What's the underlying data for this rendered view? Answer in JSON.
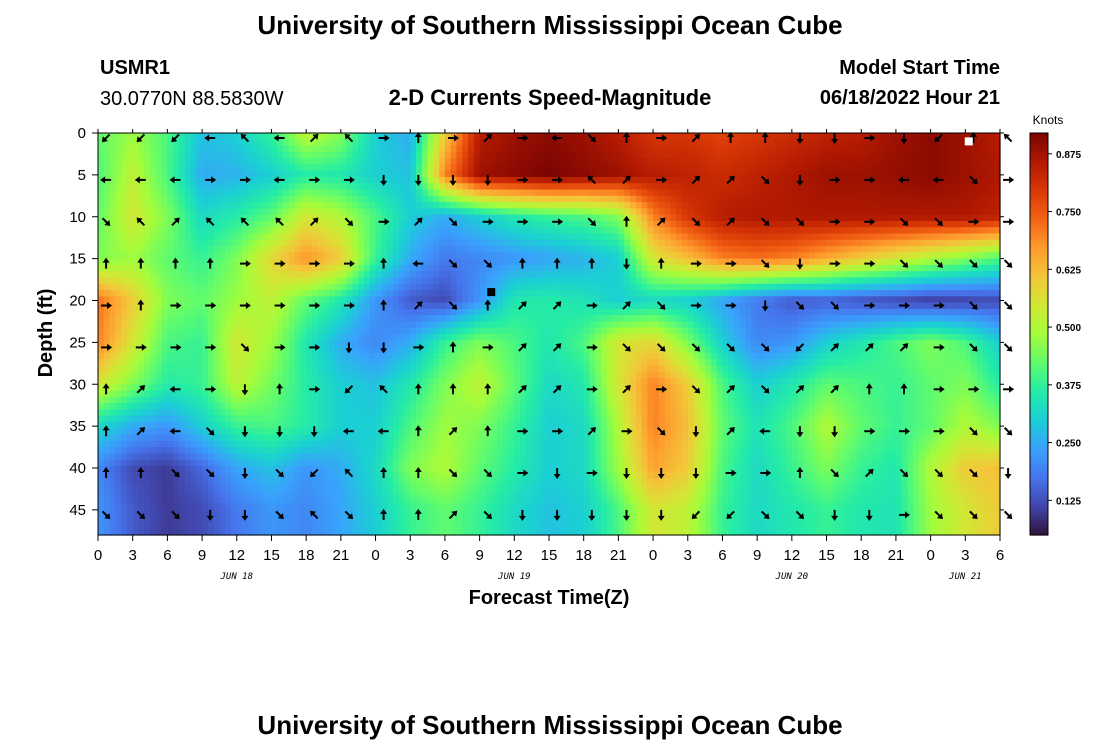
{
  "header": {
    "title": "University of Southern Mississippi Ocean Cube",
    "station_id": "USMR1",
    "station_coords": "30.0770N  88.5830W",
    "subtitle": "2-D Currents Speed-Magnitude",
    "model_start_label": "Model Start Time",
    "model_start_value": "06/18/2022 Hour 21"
  },
  "footer": {
    "title": "University of Southern Mississippi Ocean Cube"
  },
  "chart_data": {
    "type": "heatmap",
    "xlabel": "Forecast Time(Z)",
    "ylabel": "Depth (ft)",
    "x_tick_labels": [
      "0",
      "3",
      "6",
      "9",
      "12",
      "15",
      "18",
      "21",
      "0",
      "3",
      "6",
      "9",
      "12",
      "15",
      "18",
      "21",
      "0",
      "3",
      "6",
      "9",
      "12",
      "15",
      "18",
      "21",
      "0",
      "3",
      "6"
    ],
    "x_range_hours": [
      0,
      78
    ],
    "date_labels": [
      {
        "text": "JUN 18",
        "hour": 12
      },
      {
        "text": "JUN 19",
        "hour": 36
      },
      {
        "text": "JUN 20",
        "hour": 60
      },
      {
        "text": "JUN 21",
        "hour": 75
      }
    ],
    "y_ticks": [
      0,
      5,
      10,
      15,
      20,
      25,
      30,
      35,
      40,
      45
    ],
    "y_range_ft": [
      0,
      48
    ],
    "colorbar": {
      "title": "Knots",
      "ticks": [
        0.125,
        0.25,
        0.375,
        0.5,
        0.625,
        0.75,
        0.875
      ],
      "tick_labels": [
        "0.125",
        "0.250",
        "0.375",
        "0.500",
        "0.625",
        "0.750",
        "0.875"
      ],
      "range": [
        0.05,
        0.92
      ],
      "colormap": [
        "#30123b",
        "#4145ab",
        "#4675ed",
        "#39a2fc",
        "#1bcfd4",
        "#24eca6",
        "#61fc6c",
        "#a4fc3b",
        "#d1e834",
        "#f3c63a",
        "#fe9b2d",
        "#f36315",
        "#d93806",
        "#b11901",
        "#7a0403"
      ]
    },
    "speed_grid": {
      "row_depths_ft": [
        0,
        5,
        10,
        15,
        20,
        25,
        30,
        35,
        40,
        45
      ],
      "col_hours": [
        0,
        3,
        6,
        9,
        12,
        15,
        18,
        21,
        24,
        27,
        30,
        33,
        36,
        39,
        42,
        45,
        48,
        51,
        54,
        57,
        60,
        63,
        66,
        69,
        72,
        75,
        78
      ],
      "values": [
        [
          0.42,
          0.48,
          0.4,
          0.28,
          0.3,
          0.38,
          0.52,
          0.46,
          0.3,
          0.25,
          0.6,
          0.85,
          0.88,
          0.9,
          0.88,
          0.85,
          0.8,
          0.8,
          0.78,
          0.8,
          0.82,
          0.84,
          0.85,
          0.88,
          0.9,
          0.88,
          0.85
        ],
        [
          0.4,
          0.52,
          0.4,
          0.25,
          0.26,
          0.3,
          0.36,
          0.35,
          0.3,
          0.28,
          0.7,
          0.88,
          0.9,
          0.92,
          0.9,
          0.88,
          0.85,
          0.84,
          0.82,
          0.84,
          0.86,
          0.88,
          0.88,
          0.89,
          0.9,
          0.88,
          0.86
        ],
        [
          0.42,
          0.55,
          0.45,
          0.32,
          0.36,
          0.42,
          0.55,
          0.5,
          0.4,
          0.3,
          0.25,
          0.3,
          0.35,
          0.38,
          0.4,
          0.45,
          0.7,
          0.8,
          0.85,
          0.86,
          0.86,
          0.86,
          0.86,
          0.86,
          0.86,
          0.86,
          0.84
        ],
        [
          0.45,
          0.48,
          0.42,
          0.38,
          0.45,
          0.58,
          0.68,
          0.6,
          0.38,
          0.25,
          0.18,
          0.2,
          0.22,
          0.24,
          0.26,
          0.3,
          0.55,
          0.62,
          0.7,
          0.72,
          0.7,
          0.65,
          0.6,
          0.55,
          0.5,
          0.45,
          0.4
        ],
        [
          0.72,
          0.6,
          0.45,
          0.42,
          0.48,
          0.52,
          0.42,
          0.35,
          0.22,
          0.14,
          0.12,
          0.22,
          0.35,
          0.36,
          0.34,
          0.3,
          0.32,
          0.3,
          0.24,
          0.18,
          0.14,
          0.15,
          0.13,
          0.12,
          0.1,
          0.11,
          0.12
        ],
        [
          0.7,
          0.55,
          0.4,
          0.38,
          0.55,
          0.48,
          0.35,
          0.25,
          0.2,
          0.25,
          0.38,
          0.45,
          0.4,
          0.35,
          0.4,
          0.55,
          0.58,
          0.45,
          0.3,
          0.2,
          0.22,
          0.3,
          0.35,
          0.4,
          0.45,
          0.4,
          0.3
        ],
        [
          0.55,
          0.45,
          0.36,
          0.38,
          0.52,
          0.44,
          0.36,
          0.3,
          0.28,
          0.35,
          0.45,
          0.52,
          0.42,
          0.32,
          0.35,
          0.55,
          0.7,
          0.6,
          0.4,
          0.3,
          0.35,
          0.42,
          0.4,
          0.38,
          0.42,
          0.45,
          0.36
        ],
        [
          0.32,
          0.25,
          0.22,
          0.3,
          0.38,
          0.4,
          0.36,
          0.3,
          0.3,
          0.4,
          0.48,
          0.45,
          0.38,
          0.3,
          0.32,
          0.5,
          0.7,
          0.62,
          0.42,
          0.34,
          0.4,
          0.5,
          0.42,
          0.38,
          0.42,
          0.5,
          0.45
        ],
        [
          0.2,
          0.12,
          0.1,
          0.16,
          0.24,
          0.28,
          0.22,
          0.25,
          0.32,
          0.45,
          0.5,
          0.42,
          0.36,
          0.3,
          0.32,
          0.48,
          0.66,
          0.6,
          0.4,
          0.32,
          0.38,
          0.45,
          0.38,
          0.35,
          0.5,
          0.6,
          0.62
        ],
        [
          0.22,
          0.14,
          0.1,
          0.12,
          0.18,
          0.22,
          0.2,
          0.24,
          0.3,
          0.38,
          0.42,
          0.38,
          0.32,
          0.28,
          0.3,
          0.4,
          0.55,
          0.52,
          0.38,
          0.32,
          0.35,
          0.38,
          0.35,
          0.34,
          0.48,
          0.55,
          0.6
        ]
      ]
    },
    "vector_directions_deg": [
      [
        225,
        225,
        225,
        270,
        315,
        270,
        45,
        315,
        90,
        0,
        90,
        45,
        90,
        270,
        135,
        0,
        90,
        45,
        0,
        0,
        180,
        180,
        90,
        180,
        225,
        0,
        315
      ],
      [
        270,
        270,
        270,
        90,
        90,
        270,
        90,
        90,
        180,
        180,
        180,
        180,
        90,
        90,
        315,
        45,
        90,
        45,
        45,
        135,
        180,
        90,
        90,
        270,
        270,
        135,
        90
      ],
      [
        135,
        315,
        45,
        315,
        315,
        315,
        45,
        135,
        90,
        45,
        135,
        90,
        90,
        90,
        135,
        0,
        45,
        135,
        45,
        135,
        135,
        90,
        90,
        135,
        135,
        90,
        90
      ],
      [
        0,
        0,
        0,
        0,
        90,
        90,
        90,
        90,
        0,
        270,
        135,
        135,
        0,
        0,
        0,
        180,
        0,
        90,
        90,
        135,
        180,
        90,
        90,
        135,
        135,
        135,
        135
      ],
      [
        90,
        0,
        90,
        90,
        90,
        90,
        90,
        90,
        0,
        45,
        135,
        0,
        45,
        45,
        90,
        45,
        135,
        90,
        90,
        180,
        135,
        135,
        90,
        90,
        90,
        135,
        135
      ],
      [
        90,
        90,
        90,
        90,
        135,
        90,
        90,
        180,
        180,
        90,
        0,
        90,
        45,
        45,
        90,
        135,
        135,
        135,
        135,
        135,
        225,
        45,
        45,
        45,
        90,
        135,
        135
      ],
      [
        0,
        45,
        270,
        90,
        180,
        0,
        90,
        225,
        315,
        0,
        0,
        0,
        45,
        45,
        90,
        45,
        90,
        135,
        45,
        135,
        45,
        45,
        0,
        0,
        90,
        90,
        90
      ],
      [
        0,
        45,
        270,
        135,
        180,
        180,
        180,
        270,
        270,
        0,
        45,
        0,
        90,
        90,
        45,
        90,
        135,
        180,
        45,
        270,
        180,
        180,
        90,
        90,
        90,
        135,
        135
      ],
      [
        0,
        0,
        135,
        135,
        180,
        135,
        225,
        315,
        0,
        0,
        135,
        135,
        90,
        180,
        90,
        180,
        180,
        180,
        90,
        90,
        0,
        135,
        45,
        135,
        135,
        135,
        180
      ],
      [
        135,
        135,
        135,
        180,
        180,
        135,
        315,
        135,
        0,
        0,
        45,
        135,
        180,
        180,
        180,
        180,
        180,
        225,
        225,
        135,
        135,
        180,
        180,
        90,
        135,
        135,
        135
      ]
    ],
    "marked_points": [
      {
        "hour": 75.3,
        "depth_ft": 1.0,
        "color": "#ffffff"
      },
      {
        "hour": 34.0,
        "depth_ft": 19.0,
        "color": "#000000"
      }
    ]
  }
}
